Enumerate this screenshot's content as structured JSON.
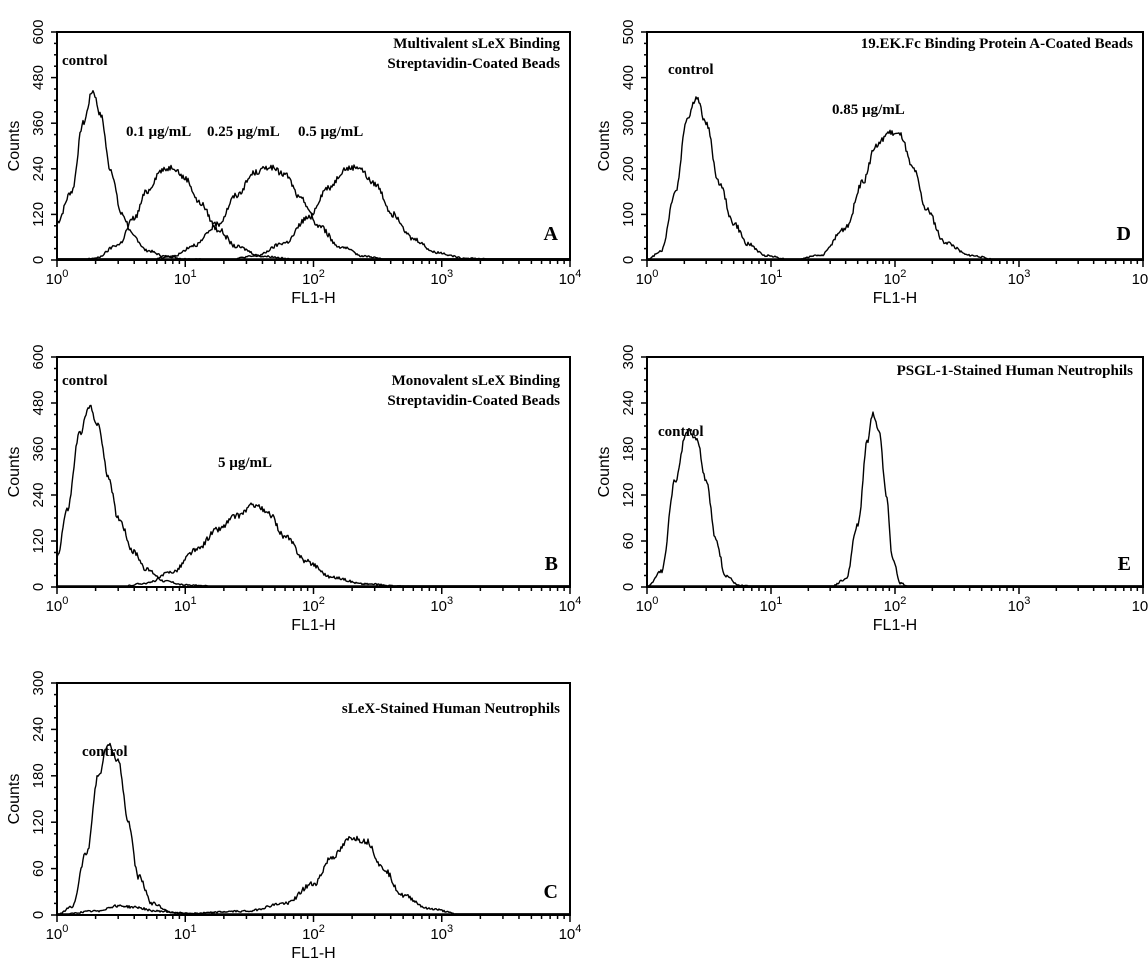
{
  "chart_data": [
    {
      "id": "A",
      "type": "line",
      "title": "Multivalent sLeX Binding Streptavidin-Coated Beads",
      "title_lines": [
        "Multivalent sLeX Binding",
        "Streptavidin-Coated Beads"
      ],
      "panel_letter": "A",
      "xlabel": "FL1-H",
      "ylabel": "Counts",
      "xscale": "log",
      "xlim": [
        1,
        10000
      ],
      "ylim": [
        0,
        600
      ],
      "yticks": [
        0,
        120,
        240,
        360,
        480,
        600
      ],
      "series": [
        {
          "name": "control",
          "points": [
            [
              1,
              100
            ],
            [
              1.3,
              180
            ],
            [
              1.6,
              360
            ],
            [
              1.9,
              445
            ],
            [
              2.2,
              380
            ],
            [
              2.6,
              240
            ],
            [
              3.2,
              120
            ],
            [
              4,
              60
            ],
            [
              5,
              25
            ],
            [
              7,
              10
            ],
            [
              10,
              3
            ],
            [
              20,
              0
            ]
          ]
        },
        {
          "name": "0.1 µg/mL",
          "points": [
            [
              1.5,
              0
            ],
            [
              2,
              5
            ],
            [
              3,
              40
            ],
            [
              4,
              110
            ],
            [
              5,
              180
            ],
            [
              6.5,
              235
            ],
            [
              8,
              245
            ],
            [
              10,
              215
            ],
            [
              13,
              150
            ],
            [
              18,
              80
            ],
            [
              25,
              35
            ],
            [
              40,
              10
            ],
            [
              80,
              0
            ]
          ]
        },
        {
          "name": "0.25 µg/mL",
          "points": [
            [
              5,
              0
            ],
            [
              8,
              10
            ],
            [
              12,
              40
            ],
            [
              18,
              95
            ],
            [
              25,
              170
            ],
            [
              35,
              230
            ],
            [
              45,
              245
            ],
            [
              60,
              225
            ],
            [
              80,
              160
            ],
            [
              110,
              90
            ],
            [
              160,
              35
            ],
            [
              250,
              10
            ],
            [
              400,
              0
            ]
          ]
        },
        {
          "name": "0.5 µg/mL",
          "points": [
            [
              20,
              0
            ],
            [
              35,
              10
            ],
            [
              60,
              45
            ],
            [
              90,
              110
            ],
            [
              130,
              190
            ],
            [
              180,
              240
            ],
            [
              220,
              245
            ],
            [
              300,
              200
            ],
            [
              420,
              120
            ],
            [
              600,
              55
            ],
            [
              900,
              20
            ],
            [
              1500,
              5
            ],
            [
              3000,
              0
            ]
          ]
        }
      ]
    },
    {
      "id": "B",
      "type": "line",
      "title": "Monovalent sLeX Binding Streptavidin-Coated Beads",
      "title_lines": [
        "Monovalent sLeX Binding",
        "Streptavidin-Coated Beads"
      ],
      "panel_letter": "B",
      "xlabel": "FL1-H",
      "ylabel": "Counts",
      "xscale": "log",
      "xlim": [
        1,
        10000
      ],
      "ylim": [
        0,
        600
      ],
      "yticks": [
        0,
        120,
        240,
        360,
        480,
        600
      ],
      "series": [
        {
          "name": "control",
          "points": [
            [
              1,
              80
            ],
            [
              1.2,
              200
            ],
            [
              1.5,
              400
            ],
            [
              1.8,
              470
            ],
            [
              2.1,
              420
            ],
            [
              2.5,
              290
            ],
            [
              3,
              180
            ],
            [
              4,
              90
            ],
            [
              5,
              45
            ],
            [
              7,
              15
            ],
            [
              10,
              5
            ],
            [
              20,
              0
            ]
          ]
        },
        {
          "name": "5 µg/mL",
          "points": [
            [
              3,
              0
            ],
            [
              5,
              10
            ],
            [
              8,
              40
            ],
            [
              12,
              95
            ],
            [
              18,
              150
            ],
            [
              25,
              185
            ],
            [
              35,
              215
            ],
            [
              45,
              190
            ],
            [
              60,
              130
            ],
            [
              90,
              65
            ],
            [
              140,
              25
            ],
            [
              250,
              8
            ],
            [
              500,
              2
            ],
            [
              1000,
              0
            ]
          ]
        }
      ]
    },
    {
      "id": "C",
      "type": "line",
      "title": "sLeX-Stained Human Neutrophils",
      "title_lines": [
        "sLeX-Stained Human Neutrophils"
      ],
      "panel_letter": "C",
      "xlabel": "FL1-H",
      "ylabel": "Counts",
      "xscale": "log",
      "xlim": [
        1,
        10000
      ],
      "ylim": [
        0,
        300
      ],
      "yticks": [
        0,
        60,
        120,
        180,
        240,
        300
      ],
      "series": [
        {
          "name": "control",
          "points": [
            [
              1,
              0
            ],
            [
              1.3,
              10
            ],
            [
              1.7,
              80
            ],
            [
              2.1,
              180
            ],
            [
              2.5,
              220
            ],
            [
              3,
              200
            ],
            [
              3.6,
              120
            ],
            [
              4.3,
              50
            ],
            [
              5.5,
              15
            ],
            [
              8,
              3
            ],
            [
              15,
              0
            ]
          ]
        },
        {
          "name": "",
          "points": [
            [
              1,
              0
            ],
            [
              2,
              5
            ],
            [
              3,
              12
            ],
            [
              4,
              10
            ],
            [
              6,
              5
            ],
            [
              10,
              2
            ],
            [
              30,
              5
            ],
            [
              60,
              15
            ],
            [
              100,
              40
            ],
            [
              140,
              75
            ],
            [
              200,
              100
            ],
            [
              260,
              95
            ],
            [
              350,
              60
            ],
            [
              500,
              25
            ],
            [
              800,
              8
            ],
            [
              1500,
              0
            ]
          ]
        }
      ]
    },
    {
      "id": "D",
      "type": "line",
      "title": "19.EK.Fc Binding Protein A-Coated Beads",
      "title_lines": [
        "19.EK.Fc Binding Protein A-Coated Beads"
      ],
      "panel_letter": "D",
      "xlabel": "FL1-H",
      "ylabel": "Counts",
      "xscale": "log",
      "xlim": [
        1,
        10000
      ],
      "ylim": [
        0,
        500
      ],
      "yticks": [
        0,
        100,
        200,
        300,
        400,
        500
      ],
      "series": [
        {
          "name": "control",
          "points": [
            [
              1,
              0
            ],
            [
              1.3,
              20
            ],
            [
              1.7,
              150
            ],
            [
              2.1,
              310
            ],
            [
              2.5,
              355
            ],
            [
              3,
              300
            ],
            [
              3.8,
              170
            ],
            [
              5,
              80
            ],
            [
              6.5,
              35
            ],
            [
              9,
              10
            ],
            [
              15,
              0
            ]
          ]
        },
        {
          "name": "0.85 µg/mL",
          "points": [
            [
              15,
              0
            ],
            [
              25,
              10
            ],
            [
              40,
              70
            ],
            [
              55,
              170
            ],
            [
              70,
              250
            ],
            [
              90,
              280
            ],
            [
              110,
              275
            ],
            [
              140,
              200
            ],
            [
              180,
              110
            ],
            [
              250,
              40
            ],
            [
              400,
              10
            ],
            [
              700,
              0
            ]
          ]
        }
      ]
    },
    {
      "id": "E",
      "type": "line",
      "title": "PSGL-1-Stained Human Neutrophils",
      "title_lines": [
        "PSGL-1-Stained Human Neutrophils"
      ],
      "panel_letter": "E",
      "xlabel": "FL1-H",
      "ylabel": "Counts",
      "xscale": "log",
      "xlim": [
        1,
        10000
      ],
      "ylim": [
        0,
        300
      ],
      "yticks": [
        0,
        60,
        120,
        180,
        240,
        300
      ],
      "series": [
        {
          "name": "control",
          "points": [
            [
              1,
              0
            ],
            [
              1.3,
              20
            ],
            [
              1.7,
              140
            ],
            [
              2.1,
              205
            ],
            [
              2.5,
              195
            ],
            [
              3,
              140
            ],
            [
              3.6,
              60
            ],
            [
              4.3,
              15
            ],
            [
              5.5,
              2
            ],
            [
              8,
              0
            ]
          ]
        },
        {
          "name": "",
          "points": [
            [
              30,
              0
            ],
            [
              40,
              10
            ],
            [
              50,
              80
            ],
            [
              60,
              190
            ],
            [
              66,
              225
            ],
            [
              75,
              200
            ],
            [
              85,
              120
            ],
            [
              95,
              40
            ],
            [
              110,
              5
            ],
            [
              130,
              0
            ]
          ]
        }
      ]
    }
  ]
}
